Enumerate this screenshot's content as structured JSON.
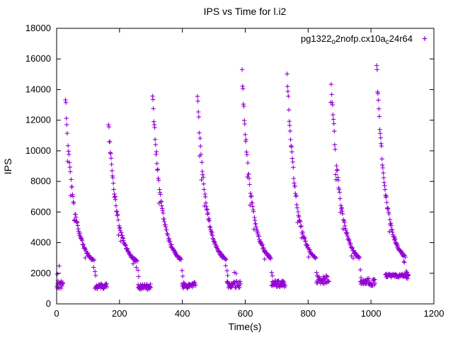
{
  "chart_data": {
    "type": "scatter",
    "title": "IPS vs Time for l.i2",
    "xlabel": "Time(s)",
    "ylabel": "IPS",
    "xlim": [
      0,
      1200
    ],
    "ylim": [
      0,
      18000
    ],
    "xticks": [
      0,
      200,
      400,
      600,
      800,
      1000,
      1200
    ],
    "yticks": [
      0,
      2000,
      4000,
      6000,
      8000,
      10000,
      12000,
      14000,
      16000,
      18000
    ],
    "grid": false,
    "legend": {
      "position": "top-right-inside",
      "plain_label": "pg1322_o2nofp.cx10a_c24r64",
      "parts": [
        "pg1322",
        "o",
        "2nofp.cx10a",
        "c",
        "24r64"
      ],
      "subscript_part_indices": [
        1,
        3
      ],
      "marker": "plus"
    },
    "series": [
      {
        "name": "pg1322_o2nofp.cx10a_c24r64",
        "marker": "plus",
        "color": "#9400d3",
        "pattern": {
          "summary": "Repeating sawtooth cycles: sharp spike to 12000-15500 IPS followed by exponential decay to ~2500 over ~90s, then a low plateau of ~1100-1600 IPS before the next spike; trace ends with a flat cluster near 1850 IPS around t=1050-1120s.",
          "noise_seed": 12,
          "initial_cluster": {
            "t_start": 0,
            "t_end": 21,
            "level": 1250
          },
          "outliers": [
            [
              2,
              1950
            ],
            [
              8,
              2480
            ],
            [
              565,
              2060
            ],
            [
              571,
              1990
            ]
          ],
          "cycles": [
            {
              "spike_time": 28,
              "peak": 13300,
              "tau": 28,
              "base": 2400,
              "decay_len": 92,
              "plateau_level": 1150,
              "plateau_start": 122,
              "plateau_end": 160
            },
            {
              "spike_time": 165,
              "peak": 11800,
              "tau": 28,
              "base": 2400,
              "decay_len": 92,
              "plateau_level": 1100,
              "plateau_start": 259,
              "plateau_end": 300
            },
            {
              "spike_time": 305,
              "peak": 13800,
              "tau": 28,
              "base": 2450,
              "decay_len": 92,
              "plateau_level": 1200,
              "plateau_start": 399,
              "plateau_end": 443
            },
            {
              "spike_time": 448,
              "peak": 13500,
              "tau": 28,
              "base": 2450,
              "decay_len": 92,
              "plateau_level": 1250,
              "plateau_start": 542,
              "plateau_end": 585
            },
            {
              "spike_time": 590,
              "peak": 15000,
              "tau": 28,
              "base": 2500,
              "decay_len": 92,
              "plateau_level": 1300,
              "plateau_start": 684,
              "plateau_end": 728
            },
            {
              "spike_time": 733,
              "peak": 15000,
              "tau": 28,
              "base": 2500,
              "decay_len": 92,
              "plateau_level": 1550,
              "plateau_start": 827,
              "plateau_end": 867
            },
            {
              "spike_time": 872,
              "peak": 15300,
              "tau": 28,
              "base": 2500,
              "decay_len": 92,
              "plateau_level": 1400,
              "plateau_start": 966,
              "plateau_end": 1013
            },
            {
              "spike_time": 1018,
              "peak": 15500,
              "tau": 28,
              "base": 2550,
              "decay_len": 92,
              "plateau_level": 1850,
              "plateau_start": 1113,
              "plateau_end": 1118
            }
          ],
          "final_cluster": {
            "t_start": 1046,
            "t_end": 1120,
            "level": 1850
          }
        }
      }
    ]
  }
}
